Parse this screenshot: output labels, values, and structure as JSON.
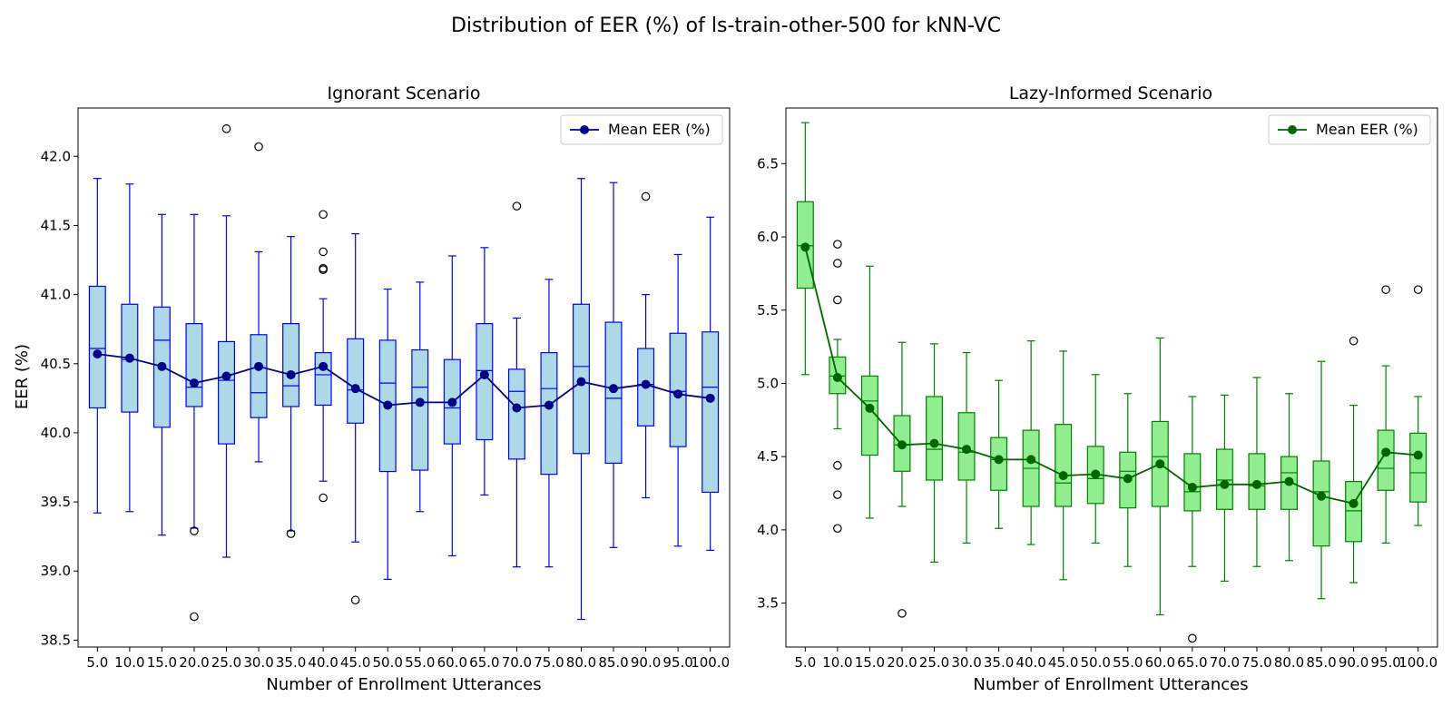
{
  "figure": {
    "suptitle": "Distribution of EER (%) of ls-train-other-500 for kNN-VC"
  },
  "chart_data": [
    {
      "type": "box",
      "title": "Ignorant Scenario",
      "xlabel": "Number of Enrollment Utterances",
      "ylabel": "EER (%)",
      "ylim": [
        38.45,
        42.35
      ],
      "yticks": [
        38.5,
        39.0,
        39.5,
        40.0,
        40.5,
        41.0,
        41.5,
        42.0
      ],
      "categories": [
        "5.0",
        "10.0",
        "15.0",
        "20.0",
        "25.0",
        "30.0",
        "35.0",
        "40.0",
        "45.0",
        "50.0",
        "55.0",
        "60.0",
        "65.0",
        "70.0",
        "75.0",
        "80.0",
        "85.0",
        "90.0",
        "95.0",
        "100.0"
      ],
      "grid": false,
      "legend": {
        "placement": "upper right",
        "entries": [
          "Mean EER (%)"
        ]
      },
      "colors": {
        "box_fill": "#add8e6",
        "box_edge": "#0000ff",
        "mean_line": "#00008b"
      },
      "boxes": [
        {
          "whislo": 39.42,
          "q1": 40.18,
          "med": 40.61,
          "q3": 41.06,
          "whishi": 41.84,
          "fliers": []
        },
        {
          "whislo": 39.43,
          "q1": 40.15,
          "med": 40.53,
          "q3": 40.93,
          "whishi": 41.8,
          "fliers": []
        },
        {
          "whislo": 39.26,
          "q1": 40.04,
          "med": 40.67,
          "q3": 40.91,
          "whishi": 41.58,
          "fliers": []
        },
        {
          "whislo": 39.31,
          "q1": 40.19,
          "med": 40.33,
          "q3": 40.79,
          "whishi": 41.58,
          "fliers": [
            39.29,
            38.67
          ]
        },
        {
          "whislo": 39.1,
          "q1": 39.92,
          "med": 40.38,
          "q3": 40.66,
          "whishi": 41.57,
          "fliers": [
            42.2
          ]
        },
        {
          "whislo": 39.79,
          "q1": 40.11,
          "med": 40.29,
          "q3": 40.71,
          "whishi": 41.31,
          "fliers": [
            42.07
          ]
        },
        {
          "whislo": 39.29,
          "q1": 40.19,
          "med": 40.34,
          "q3": 40.79,
          "whishi": 41.42,
          "fliers": [
            39.27
          ]
        },
        {
          "whislo": 39.65,
          "q1": 40.2,
          "med": 40.42,
          "q3": 40.58,
          "whishi": 40.97,
          "fliers": [
            41.58,
            41.31,
            41.19,
            41.18,
            39.53
          ]
        },
        {
          "whislo": 39.21,
          "q1": 40.07,
          "med": 40.31,
          "q3": 40.68,
          "whishi": 41.44,
          "fliers": [
            38.79
          ]
        },
        {
          "whislo": 38.94,
          "q1": 39.72,
          "med": 40.36,
          "q3": 40.67,
          "whishi": 41.04,
          "fliers": []
        },
        {
          "whislo": 39.43,
          "q1": 39.73,
          "med": 40.33,
          "q3": 40.6,
          "whishi": 41.09,
          "fliers": []
        },
        {
          "whislo": 39.11,
          "q1": 39.92,
          "med": 40.18,
          "q3": 40.53,
          "whishi": 41.28,
          "fliers": []
        },
        {
          "whislo": 39.55,
          "q1": 39.95,
          "med": 40.45,
          "q3": 40.79,
          "whishi": 41.34,
          "fliers": []
        },
        {
          "whislo": 39.03,
          "q1": 39.81,
          "med": 40.3,
          "q3": 40.46,
          "whishi": 40.83,
          "fliers": [
            41.64
          ]
        },
        {
          "whislo": 39.03,
          "q1": 39.7,
          "med": 40.32,
          "q3": 40.58,
          "whishi": 41.11,
          "fliers": []
        },
        {
          "whislo": 38.65,
          "q1": 39.85,
          "med": 40.48,
          "q3": 40.93,
          "whishi": 41.84,
          "fliers": []
        },
        {
          "whislo": 39.17,
          "q1": 39.78,
          "med": 40.25,
          "q3": 40.8,
          "whishi": 41.81,
          "fliers": []
        },
        {
          "whislo": 39.53,
          "q1": 40.05,
          "med": 40.35,
          "q3": 40.61,
          "whishi": 41.0,
          "fliers": [
            41.71
          ]
        },
        {
          "whislo": 39.18,
          "q1": 39.9,
          "med": 40.3,
          "q3": 40.72,
          "whishi": 41.29,
          "fliers": []
        },
        {
          "whislo": 39.15,
          "q1": 39.57,
          "med": 40.33,
          "q3": 40.73,
          "whishi": 41.56,
          "fliers": []
        }
      ],
      "series": [
        {
          "name": "Mean EER (%)",
          "type": "line",
          "values": [
            40.57,
            40.54,
            40.48,
            40.36,
            40.41,
            40.48,
            40.42,
            40.48,
            40.32,
            40.2,
            40.22,
            40.22,
            40.42,
            40.18,
            40.2,
            40.37,
            40.32,
            40.35,
            40.28,
            40.25
          ]
        }
      ]
    },
    {
      "type": "box",
      "title": "Lazy-Informed Scenario",
      "xlabel": "Number of Enrollment Utterances",
      "ylabel": "",
      "ylim": [
        3.2,
        6.88
      ],
      "yticks": [
        3.5,
        4.0,
        4.5,
        5.0,
        5.5,
        6.0,
        6.5
      ],
      "categories": [
        "5.0",
        "10.0",
        "15.0",
        "20.0",
        "25.0",
        "30.0",
        "35.0",
        "40.0",
        "45.0",
        "50.0",
        "55.0",
        "60.0",
        "65.0",
        "70.0",
        "75.0",
        "80.0",
        "85.0",
        "90.0",
        "95.0",
        "100.0"
      ],
      "grid": false,
      "legend": {
        "placement": "upper right",
        "entries": [
          "Mean EER (%)"
        ]
      },
      "colors": {
        "box_fill": "#90ee90",
        "box_edge": "#008000",
        "mean_line": "#006400"
      },
      "boxes": [
        {
          "whislo": 5.06,
          "q1": 5.65,
          "med": 5.94,
          "q3": 6.24,
          "whishi": 6.78,
          "fliers": []
        },
        {
          "whislo": 4.69,
          "q1": 4.93,
          "med": 5.05,
          "q3": 5.18,
          "whishi": 5.3,
          "fliers": [
            5.95,
            5.82,
            5.57,
            4.44,
            4.24,
            4.01
          ]
        },
        {
          "whislo": 4.08,
          "q1": 4.51,
          "med": 4.88,
          "q3": 5.05,
          "whishi": 5.8,
          "fliers": []
        },
        {
          "whislo": 4.16,
          "q1": 4.4,
          "med": 4.58,
          "q3": 4.78,
          "whishi": 5.28,
          "fliers": [
            3.43
          ]
        },
        {
          "whislo": 3.78,
          "q1": 4.34,
          "med": 4.55,
          "q3": 4.91,
          "whishi": 5.27,
          "fliers": []
        },
        {
          "whislo": 3.91,
          "q1": 4.34,
          "med": 4.53,
          "q3": 4.8,
          "whishi": 5.21,
          "fliers": []
        },
        {
          "whislo": 4.01,
          "q1": 4.27,
          "med": 4.48,
          "q3": 4.63,
          "whishi": 5.02,
          "fliers": []
        },
        {
          "whislo": 3.9,
          "q1": 4.16,
          "med": 4.42,
          "q3": 4.68,
          "whishi": 5.29,
          "fliers": []
        },
        {
          "whislo": 3.66,
          "q1": 4.16,
          "med": 4.32,
          "q3": 4.72,
          "whishi": 5.22,
          "fliers": []
        },
        {
          "whislo": 3.91,
          "q1": 4.18,
          "med": 4.35,
          "q3": 4.57,
          "whishi": 5.06,
          "fliers": []
        },
        {
          "whislo": 3.75,
          "q1": 4.15,
          "med": 4.4,
          "q3": 4.53,
          "whishi": 4.93,
          "fliers": []
        },
        {
          "whislo": 3.42,
          "q1": 4.16,
          "med": 4.5,
          "q3": 4.74,
          "whishi": 5.31,
          "fliers": []
        },
        {
          "whislo": 3.75,
          "q1": 4.13,
          "med": 4.26,
          "q3": 4.52,
          "whishi": 4.91,
          "fliers": [
            3.26
          ]
        },
        {
          "whislo": 3.65,
          "q1": 4.14,
          "med": 4.34,
          "q3": 4.55,
          "whishi": 4.92,
          "fliers": []
        },
        {
          "whislo": 3.75,
          "q1": 4.14,
          "med": 4.3,
          "q3": 4.52,
          "whishi": 5.04,
          "fliers": []
        },
        {
          "whislo": 3.79,
          "q1": 4.14,
          "med": 4.39,
          "q3": 4.5,
          "whishi": 4.93,
          "fliers": []
        },
        {
          "whislo": 3.53,
          "q1": 3.89,
          "med": 4.26,
          "q3": 4.47,
          "whishi": 5.15,
          "fliers": []
        },
        {
          "whislo": 3.64,
          "q1": 3.92,
          "med": 4.13,
          "q3": 4.33,
          "whishi": 4.85,
          "fliers": [
            5.29
          ]
        },
        {
          "whislo": 3.91,
          "q1": 4.27,
          "med": 4.42,
          "q3": 4.68,
          "whishi": 5.12,
          "fliers": [
            5.64
          ]
        },
        {
          "whislo": 4.03,
          "q1": 4.19,
          "med": 4.39,
          "q3": 4.66,
          "whishi": 4.91,
          "fliers": [
            5.64
          ]
        }
      ],
      "series": [
        {
          "name": "Mean EER (%)",
          "type": "line",
          "values": [
            5.93,
            5.04,
            4.83,
            4.58,
            4.59,
            4.55,
            4.48,
            4.48,
            4.37,
            4.38,
            4.35,
            4.45,
            4.29,
            4.31,
            4.31,
            4.33,
            4.23,
            4.18,
            4.53,
            4.51
          ]
        }
      ]
    }
  ]
}
